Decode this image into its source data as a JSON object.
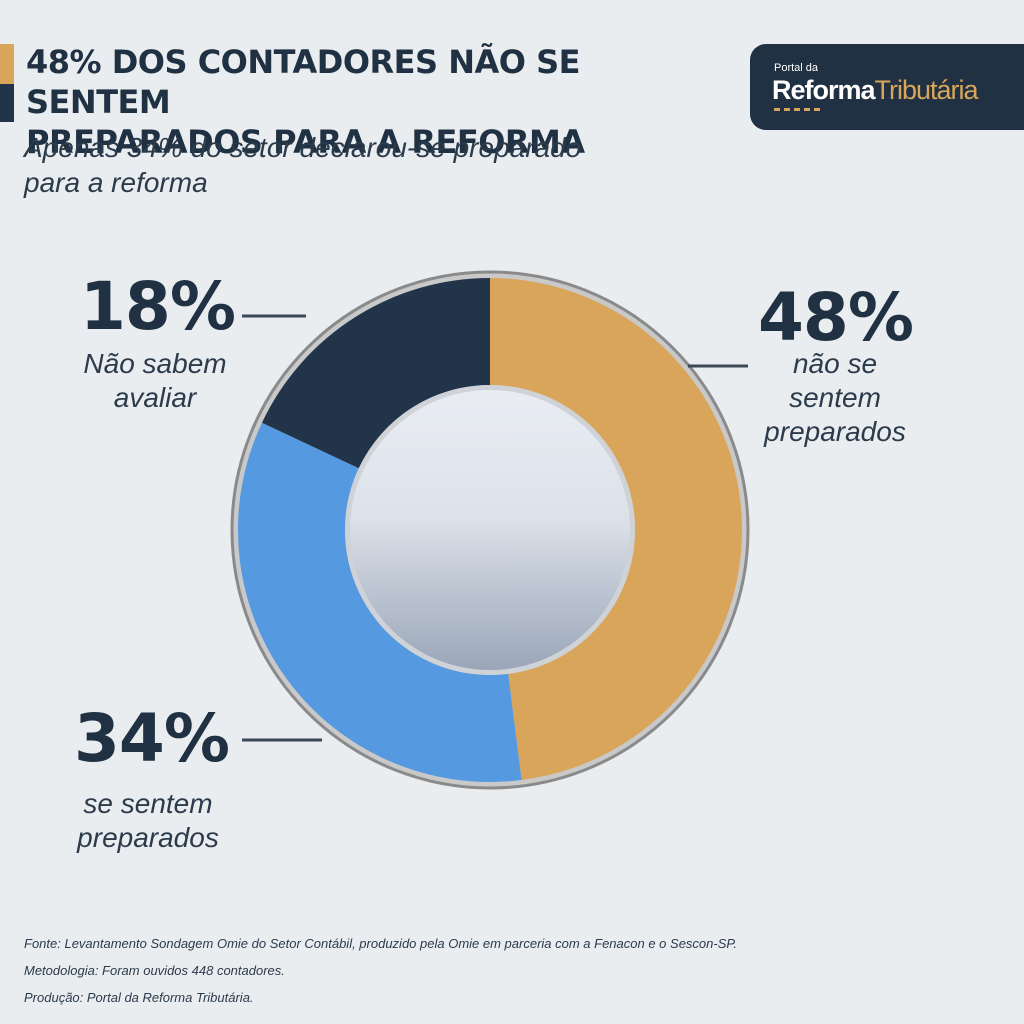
{
  "header": {
    "title_line1": "48% DOS CONTADORES NÃO SE SENTEM",
    "title_line2": "PREPARADOS PARA A REFORMA",
    "subtitle_line1": "Apenas 34% do setor declarou-se preparado",
    "subtitle_line2": "para a reforma"
  },
  "logo": {
    "small_text": "Portal da",
    "main_text_bold": "Reforma",
    "main_text_light": "Tributária"
  },
  "chart_data": {
    "type": "pie",
    "title": "48% DOS CONTADORES NÃO SE SENTEM PREPARADOS PARA A REFORMA",
    "subtitle": "Apenas 34% do setor declarou-se preparado para a reforma",
    "donut": true,
    "slices": [
      {
        "label_pct": "48%",
        "label_line1": "não se",
        "label_line2": "sentem",
        "label_line3": "preparados",
        "value": 48,
        "color": "#d9a55a"
      },
      {
        "label_pct": "34%",
        "label_line1": "se sentem",
        "label_line2": "preparados",
        "value": 34,
        "color": "#5599e0"
      },
      {
        "label_pct": "18%",
        "label_line1": "Não sabem",
        "label_line2": "avaliar",
        "value": 18,
        "color": "#22344a"
      }
    ]
  },
  "footer": {
    "source": "Fonte: Levantamento Sondagem Omie do Setor Contábil, produzido pela Omie em parceria com a Fenacon e o Sescon-SP.",
    "methodology": "Metodologia: Foram ouvidos 448 contadores.",
    "production": "Produção: Portal da Reforma Tributária."
  }
}
